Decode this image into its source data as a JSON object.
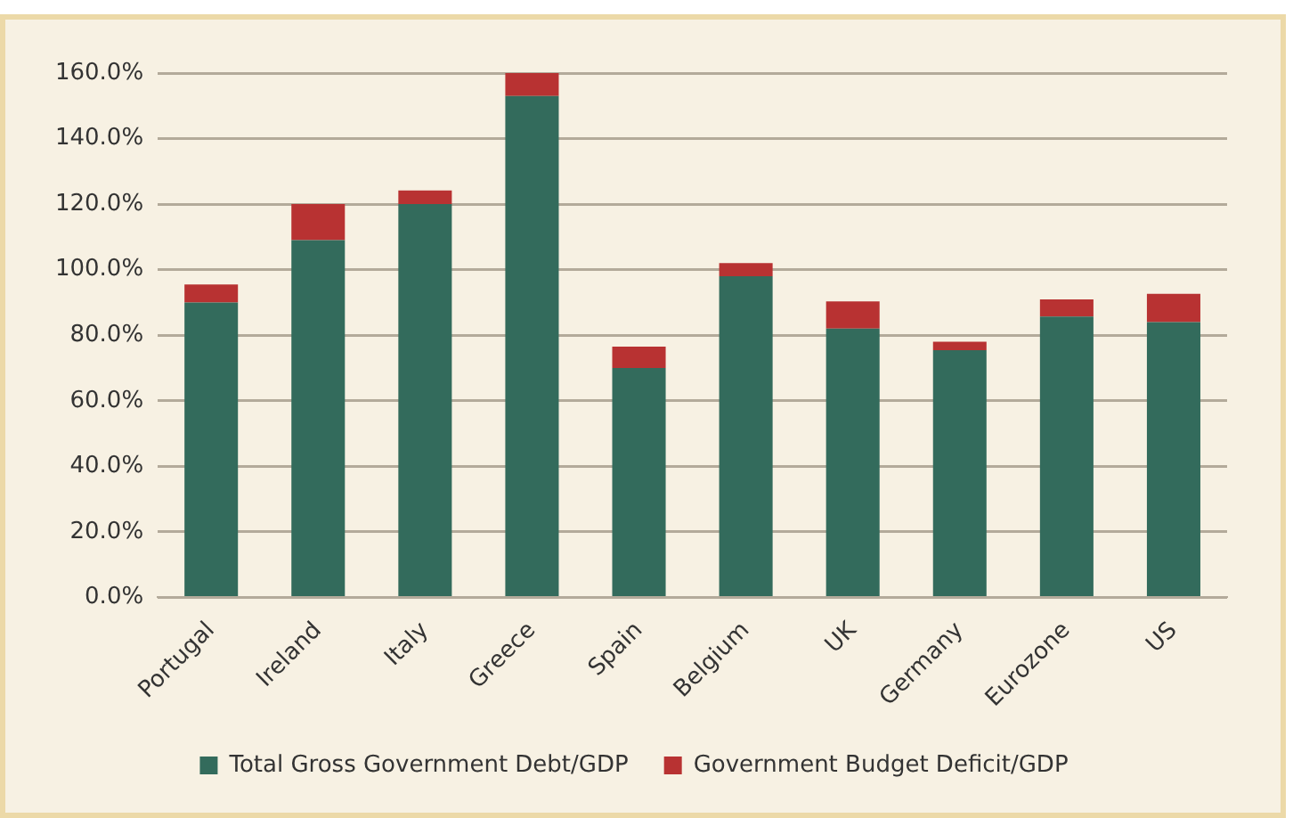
{
  "chart_data": {
    "type": "bar",
    "stacked": true,
    "categories": [
      "Portugal",
      "Ireland",
      "Italy",
      "Greece",
      "Spain",
      "Belgium",
      "UK",
      "Germany",
      "Eurozone",
      "US"
    ],
    "series": [
      {
        "name": "Total Gross Government Debt/GDP",
        "color": "#336b5c",
        "values": [
          90,
          109,
          120,
          153,
          70,
          98,
          82,
          75.4,
          85.7,
          84
        ]
      },
      {
        "name": "Government Budget Deficit/GDP",
        "color": "#b83232",
        "values": [
          5.5,
          11,
          4.2,
          7,
          6.5,
          4,
          8.3,
          2.6,
          5.2,
          8.6
        ]
      }
    ],
    "ylim": [
      0,
      160
    ],
    "yticks": [
      {
        "value": 0,
        "label": "0.0%"
      },
      {
        "value": 20,
        "label": "20.0%"
      },
      {
        "value": 40,
        "label": "40.0%"
      },
      {
        "value": 60,
        "label": "60.0%"
      },
      {
        "value": 80,
        "label": "80.0%"
      },
      {
        "value": 100,
        "label": "100.0%"
      },
      {
        "value": 120,
        "label": "120.0%"
      },
      {
        "value": 140,
        "label": "140.0%"
      },
      {
        "value": 160,
        "label": "160.0%"
      }
    ],
    "grid": "y",
    "legend": "bottom"
  }
}
